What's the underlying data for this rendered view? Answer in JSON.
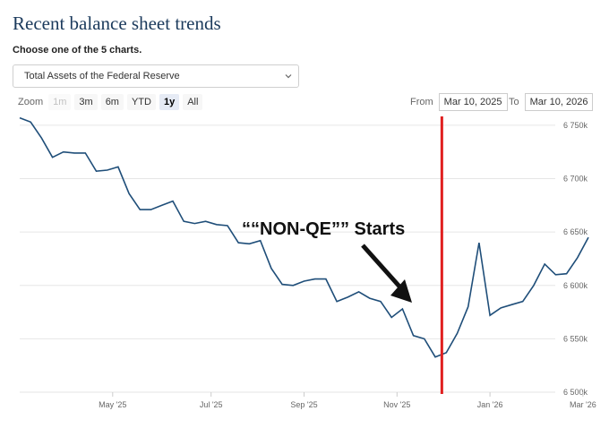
{
  "page": {
    "title": "Recent balance sheet trends",
    "subtitle": "Choose one of the 5 charts."
  },
  "selector": {
    "value": "Total Assets of the Federal Reserve",
    "icon": "chevron-down-icon"
  },
  "zoom": {
    "label": "Zoom",
    "buttons": [
      {
        "label": "1m",
        "state": "disabled"
      },
      {
        "label": "3m",
        "state": "normal"
      },
      {
        "label": "6m",
        "state": "normal"
      },
      {
        "label": "YTD",
        "state": "normal"
      },
      {
        "label": "1y",
        "state": "active"
      },
      {
        "label": "All",
        "state": "normal"
      }
    ]
  },
  "range": {
    "from_label": "From",
    "from_value": "Mar 10, 2025",
    "to_label": "To",
    "to_value": "Mar 10, 2026"
  },
  "annotation": {
    "text": "““NON-QE”” Starts",
    "marker_date": "Dec '25",
    "line_color": "#e02020"
  },
  "colors": {
    "line": "#1f4e79",
    "grid": "#e6e6e6",
    "title": "#1b3a5c"
  },
  "chart_data": {
    "type": "line",
    "title": "",
    "xlabel": "",
    "ylabel": "",
    "x_ticks": [
      "May '25",
      "Jul '25",
      "Sep '25",
      "Nov '25",
      "Jan '26",
      "Mar '26"
    ],
    "y_ticks": [
      "6 500k",
      "6 550k",
      "6 600k",
      "6 650k",
      "6 700k",
      "6 750k"
    ],
    "ylim": [
      6500,
      6760
    ],
    "y_unit": "k",
    "grid": true,
    "series": [
      {
        "values": [
          6757,
          6753,
          6738,
          6720,
          6725,
          6724,
          6724,
          6707,
          6708,
          6711,
          6686,
          6671,
          6671,
          6675,
          6679,
          6660,
          6658,
          6660,
          6657,
          6656,
          6640,
          6639,
          6642,
          6616,
          6601,
          6600,
          6604,
          6606,
          6606,
          6585,
          6589,
          6594,
          6588,
          6585,
          6570,
          6578,
          6553,
          6550,
          6533,
          6537,
          6555,
          6580,
          6640,
          6572,
          6579,
          6582,
          6585,
          6600,
          6620,
          6610,
          6611,
          6626,
          6645
        ]
      }
    ]
  }
}
